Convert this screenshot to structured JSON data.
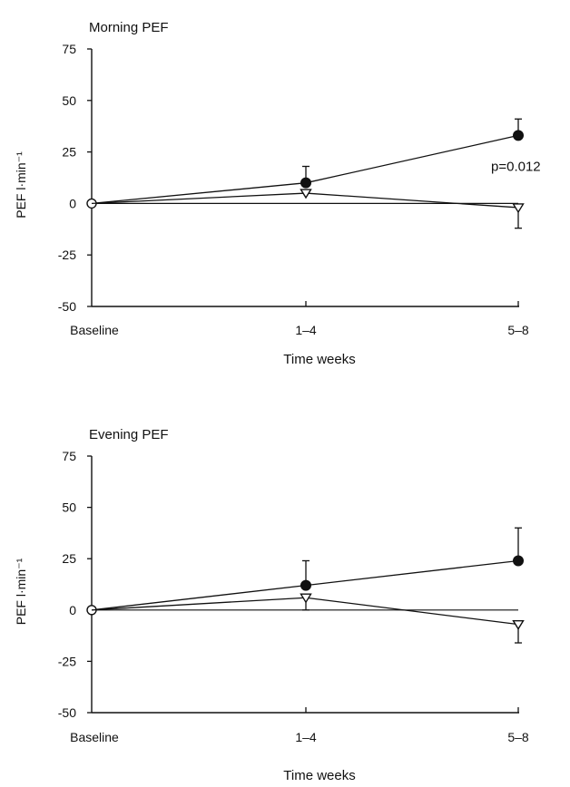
{
  "chart_data": [
    {
      "type": "line",
      "title": "Morning PEF",
      "ylabel": "PEF l·min⁻¹",
      "xlabel": "Time weeks",
      "categories": [
        "Baseline",
        "1–4",
        "5–8"
      ],
      "ylim": [
        -50,
        75
      ],
      "yticks": [
        75,
        50,
        25,
        0,
        -25,
        -50
      ],
      "reference_line": 0,
      "annotation": "p=0.012",
      "series": [
        {
          "marker": "filled-circle",
          "values": [
            0,
            10,
            33
          ],
          "error_up": [
            0,
            8,
            8
          ],
          "error_down": [
            0,
            0,
            0
          ]
        },
        {
          "marker": "open-triangle",
          "values": [
            0,
            5,
            -2
          ],
          "error_up": [
            0,
            0,
            0
          ],
          "error_down": [
            0,
            0,
            10
          ]
        }
      ]
    },
    {
      "type": "line",
      "title": "Evening PEF",
      "ylabel": "PEF l·min⁻¹",
      "xlabel": "Time weeks",
      "categories": [
        "Baseline",
        "1–4",
        "5–8"
      ],
      "ylim": [
        -50,
        75
      ],
      "yticks": [
        75,
        50,
        25,
        0,
        -25,
        -50
      ],
      "reference_line": 0,
      "annotation": "",
      "series": [
        {
          "marker": "filled-circle",
          "values": [
            0,
            12,
            24
          ],
          "error_up": [
            0,
            12,
            16
          ],
          "error_down": [
            0,
            0,
            0
          ]
        },
        {
          "marker": "open-triangle",
          "values": [
            0,
            6,
            -7
          ],
          "error_up": [
            0,
            0,
            0
          ],
          "error_down": [
            0,
            6,
            9
          ]
        }
      ]
    }
  ]
}
